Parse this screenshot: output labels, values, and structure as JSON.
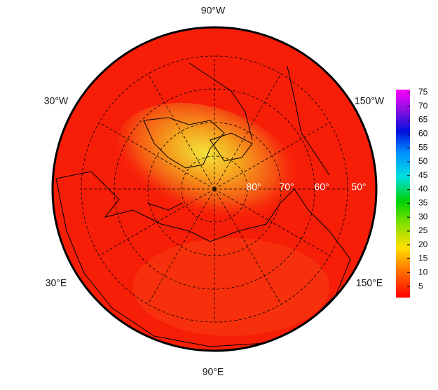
{
  "map": {
    "longitude_labels": [
      "90°W",
      "30°W",
      "150°W",
      "30°E",
      "150°E",
      "90°E"
    ],
    "latitude_labels": [
      "80°",
      "70°",
      "60°",
      "50°"
    ],
    "colorbar": {
      "range": [
        1,
        76
      ],
      "ticks": [
        5,
        10,
        15,
        20,
        25,
        30,
        35,
        40,
        45,
        50,
        55,
        60,
        65,
        70,
        75
      ]
    }
  }
}
